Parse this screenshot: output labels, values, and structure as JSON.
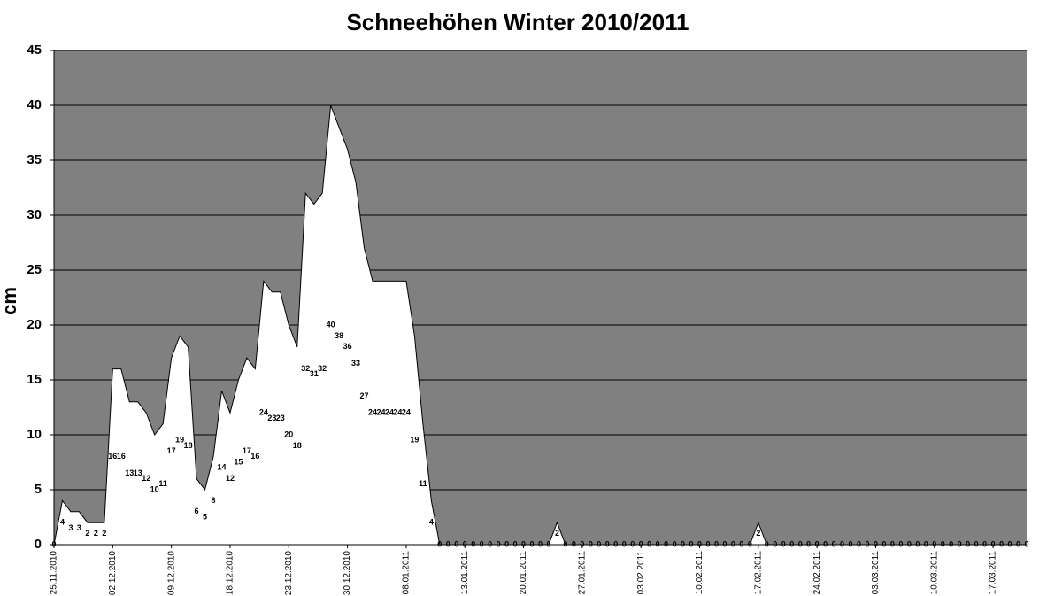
{
  "chart_data": {
    "type": "area",
    "title": "Schneehöhen Winter 2010/2011",
    "y_label": "cm",
    "categories": [
      "25.11.2010",
      null,
      null,
      null,
      null,
      null,
      null,
      "02.12.2010",
      null,
      null,
      null,
      null,
      null,
      null,
      "09.12.2010",
      null,
      null,
      null,
      null,
      null,
      null,
      "18.12.2010",
      null,
      null,
      null,
      null,
      null,
      null,
      "23.12.2010",
      null,
      null,
      null,
      null,
      null,
      null,
      "30.12.2010",
      null,
      null,
      null,
      null,
      null,
      null,
      "08.01.2011",
      null,
      null,
      null,
      null,
      null,
      null,
      "13.01.2011",
      null,
      null,
      null,
      null,
      null,
      null,
      "20.01.2011",
      null,
      null,
      null,
      null,
      null,
      null,
      "27.01.2011",
      null,
      null,
      null,
      null,
      null,
      null,
      "03.02.2011",
      null,
      null,
      null,
      null,
      null,
      null,
      "10.02.2011",
      null,
      null,
      null,
      null,
      null,
      null,
      "17.02.2011",
      null,
      null,
      null,
      null,
      null,
      null,
      "24.02.2011",
      null,
      null,
      null,
      null,
      null,
      null,
      "03.03.2011",
      null,
      null,
      null,
      null,
      null,
      null,
      "10.03.2011",
      null,
      null,
      null,
      null,
      null,
      null,
      "17.03.2011",
      null,
      null,
      null,
      null
    ],
    "values": [
      0,
      4,
      3,
      3,
      2,
      2,
      2,
      16,
      16,
      13,
      13,
      12,
      10,
      11,
      17,
      19,
      18,
      6,
      5,
      8,
      14,
      12,
      15,
      17,
      16,
      24,
      23,
      23,
      20,
      18,
      32,
      31,
      32,
      40,
      38,
      36,
      33,
      27,
      24,
      24,
      24,
      24,
      24,
      19,
      11,
      4,
      0,
      0,
      0,
      0,
      0,
      0,
      0,
      0,
      0,
      0,
      0,
      0,
      0,
      0,
      2,
      0,
      0,
      0,
      0,
      0,
      0,
      0,
      0,
      0,
      0,
      0,
      0,
      0,
      0,
      0,
      0,
      0,
      0,
      0,
      0,
      0,
      0,
      0,
      2,
      0,
      0,
      0,
      0,
      0,
      0,
      0,
      0,
      0,
      0,
      0,
      0,
      0,
      0,
      0,
      0,
      0,
      0,
      0,
      0,
      0,
      0,
      0,
      0,
      0,
      0,
      0,
      0,
      0,
      0,
      0,
      0
    ],
    "color": "#ffffff",
    "background": "#808080",
    "ylim": [
      0,
      45
    ],
    "yticks": [
      0,
      5,
      10,
      15,
      20,
      25,
      30,
      35,
      40,
      45
    ],
    "grid": true
  }
}
